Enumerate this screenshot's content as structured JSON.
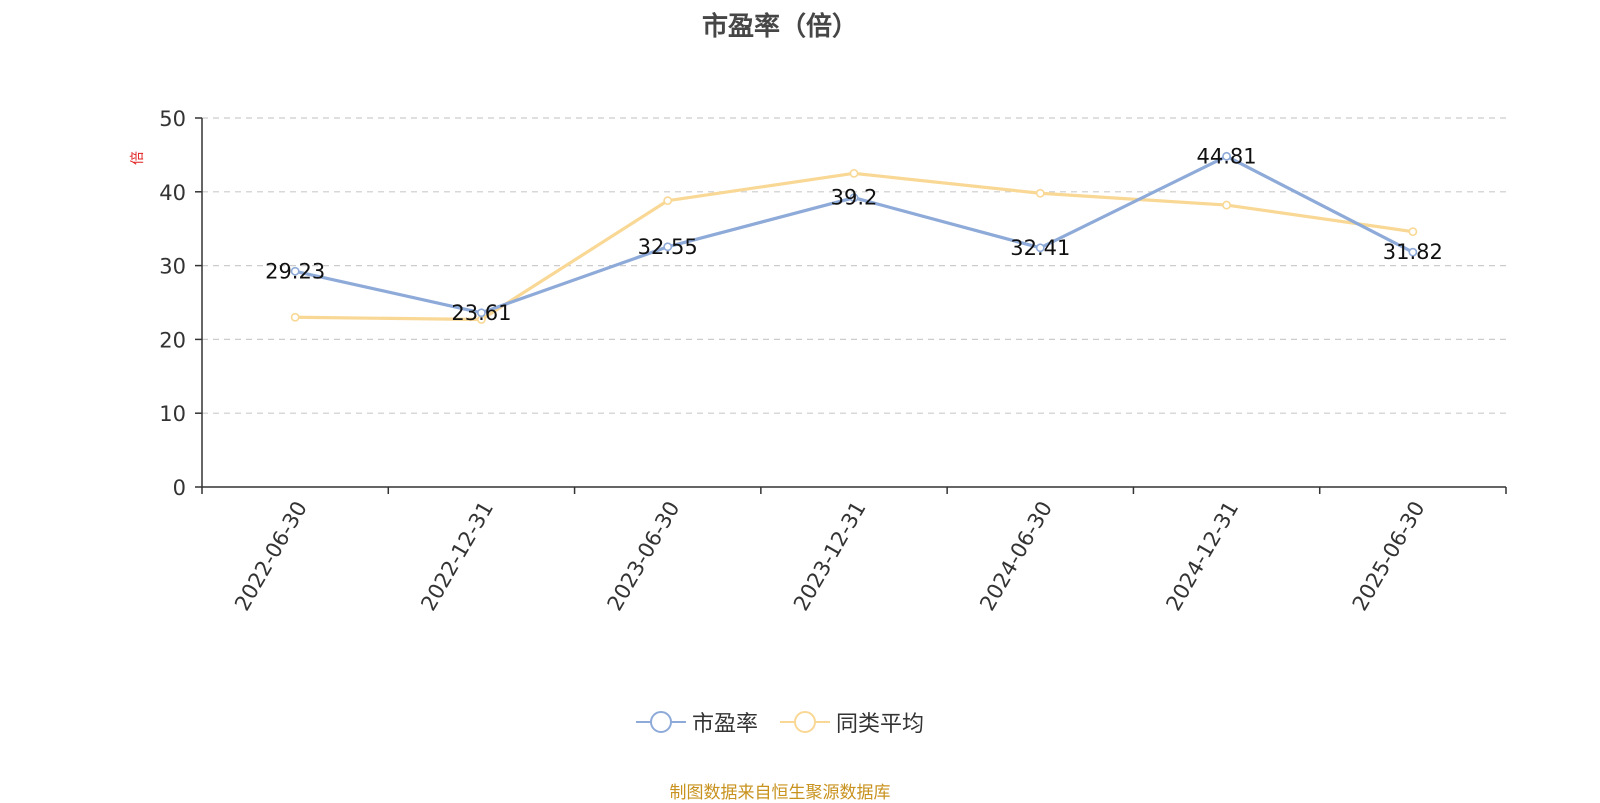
{
  "chart_data": {
    "type": "line",
    "title": "市盈率（倍）",
    "ylabel": "倍",
    "xlabel": "",
    "categories": [
      "2022-06-30",
      "2022-12-31",
      "2023-06-30",
      "2023-12-31",
      "2024-06-30",
      "2024-12-31",
      "2025-06-30"
    ],
    "ylim": [
      0,
      50
    ],
    "yticks": [
      0,
      10,
      20,
      30,
      40,
      50
    ],
    "grid": "horizontal dashed",
    "legend_position": "bottom-center",
    "series": [
      {
        "name": "市盈率",
        "color": "#8eaad8",
        "values": [
          29.23,
          23.61,
          32.55,
          39.2,
          32.41,
          44.81,
          31.82
        ],
        "labels": [
          "29.23",
          "23.61",
          "32.55",
          "39.2",
          "32.41",
          "44.81",
          "31.82"
        ]
      },
      {
        "name": "同类平均",
        "color": "#f9d895",
        "values": [
          23.0,
          22.7,
          38.8,
          42.5,
          39.8,
          38.2,
          34.6
        ]
      }
    ]
  },
  "footer": {
    "source": "制图数据来自恒生聚源数据库"
  }
}
